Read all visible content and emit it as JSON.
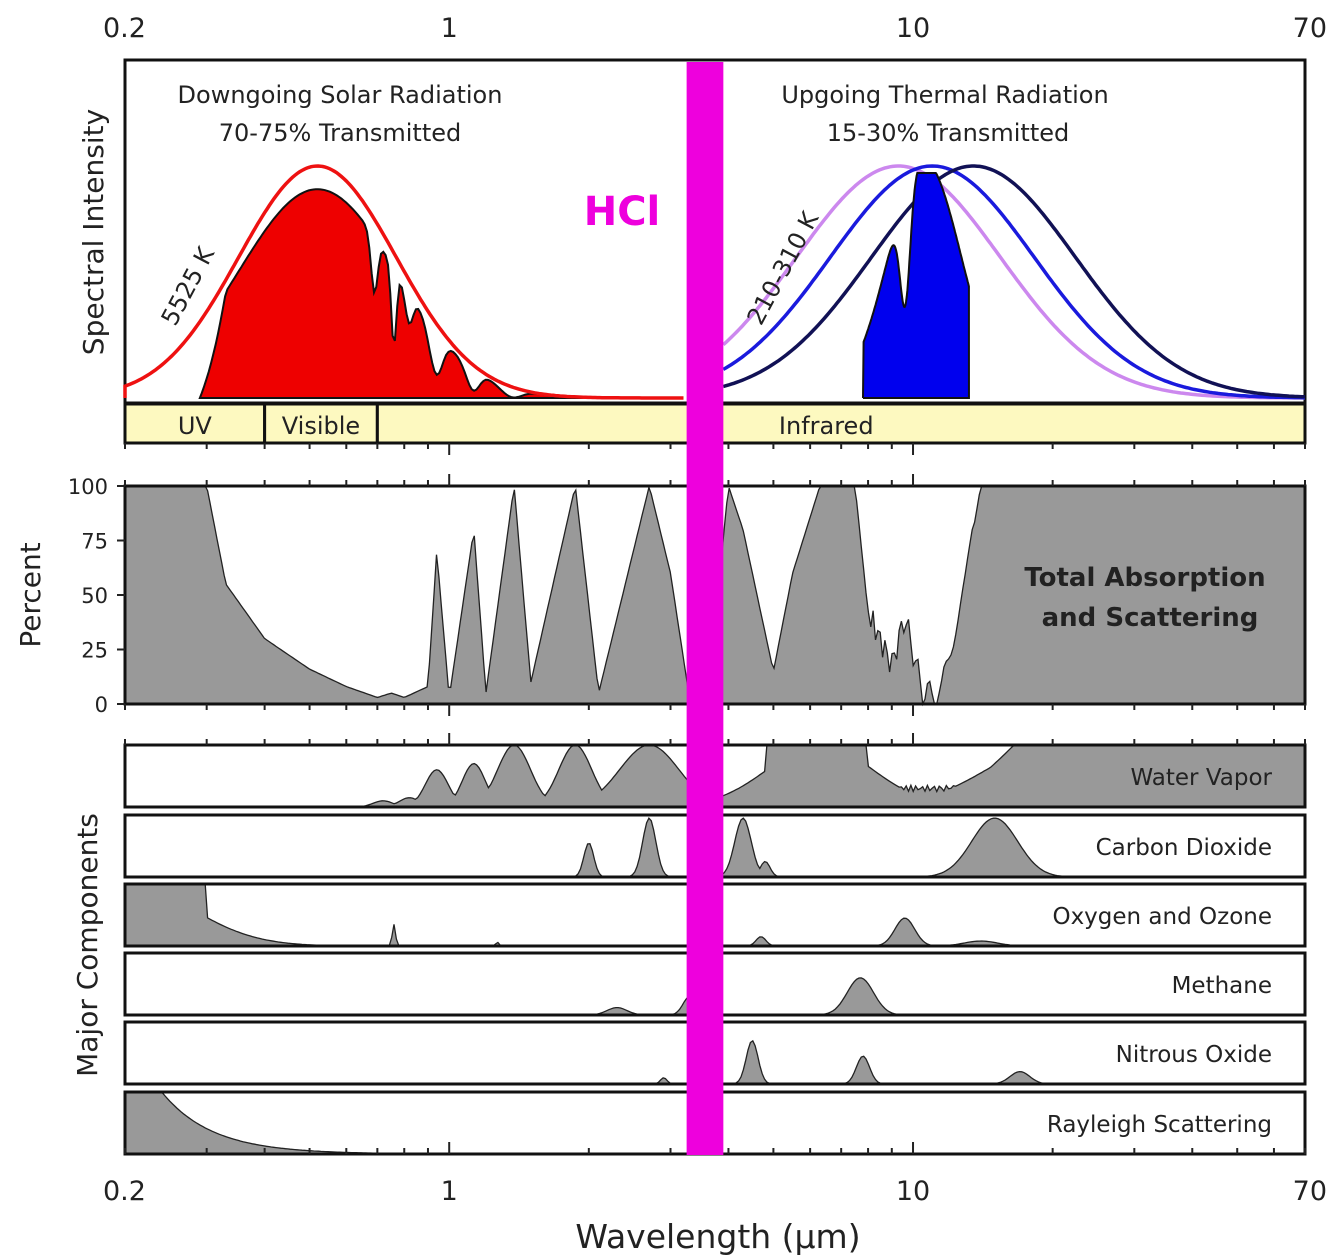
{
  "chart_data": {
    "type": "area",
    "xlabel": "Wavelength (μm)",
    "x_scale": "log",
    "xlim": [
      0.2,
      70
    ],
    "x_ticks": [
      "0.2",
      "1",
      "10",
      "70"
    ],
    "highlight": {
      "label": "HCl",
      "color": "#ee00dd",
      "x_range": [
        3.25,
        3.9
      ]
    },
    "panels": {
      "spectrum": {
        "ylabel": "Spectral Intensity",
        "solar": {
          "title": "Downgoing Solar Radiation",
          "subtitle": "70-75% Transmitted",
          "curve_label": "5525 K",
          "blackbody_color": "#ee1111",
          "fill_color": "#ee0000"
        },
        "thermal": {
          "title": "Upgoing Thermal Radiation",
          "subtitle": "15-30% Transmitted",
          "curve_label": "210-310 K",
          "blackbody_colors": [
            "#cc88ee",
            "#1a1add",
            "#111155"
          ],
          "fill_color": "#0000ee"
        },
        "bands": [
          {
            "label": "UV",
            "x_range": [
              0.2,
              0.4
            ]
          },
          {
            "label": "Visible",
            "x_range": [
              0.4,
              0.7
            ]
          },
          {
            "label": "Infrared",
            "x_range": [
              0.7,
              70
            ]
          }
        ]
      },
      "total": {
        "ylabel": "Percent",
        "title_line1": "Total Absorption",
        "title_line2": "and Scattering",
        "ylim": [
          0,
          100
        ],
        "y_ticks": [
          "0",
          "25",
          "50",
          "75",
          "100"
        ],
        "x": [
          0.2,
          0.3,
          0.33,
          0.4,
          0.5,
          0.6,
          0.7,
          0.75,
          0.8,
          0.9,
          0.94,
          1.0,
          1.13,
          1.2,
          1.38,
          1.5,
          1.87,
          2.1,
          2.7,
          3.0,
          3.3,
          3.6,
          4.0,
          4.3,
          5.0,
          5.5,
          6.3,
          7.5,
          8.0,
          9.0,
          9.6,
          10.5,
          11.5,
          13.0,
          14.0,
          20.0,
          70.0
        ],
        "values": [
          100,
          100,
          55,
          30,
          16,
          8,
          3,
          5,
          3,
          8,
          70,
          3,
          80,
          5,
          100,
          10,
          100,
          5,
          100,
          60,
          2,
          1,
          100,
          80,
          15,
          60,
          100,
          100,
          42,
          18,
          40,
          5,
          5,
          60,
          100,
          100,
          100
        ]
      },
      "components_ylabel": "Major Components",
      "components": [
        {
          "name": "Water Vapor",
          "peaks": [
            [
              0.72,
              0.1,
              0.03
            ],
            [
              0.82,
              0.15,
              0.03
            ],
            [
              0.94,
              0.6,
              0.035
            ],
            [
              1.13,
              0.7,
              0.035
            ],
            [
              1.38,
              1.0,
              0.05
            ],
            [
              1.87,
              1.0,
              0.05
            ],
            [
              2.7,
              1.0,
              0.09
            ],
            [
              6.3,
              1.0,
              0.16
            ],
            [
              8.5,
              0.3,
              0.15
            ],
            [
              20,
              1.0,
              0.2
            ],
            [
              40,
              1.0,
              0.4
            ]
          ]
        },
        {
          "name": "Carbon Dioxide",
          "peaks": [
            [
              2.0,
              0.55,
              0.015
            ],
            [
              2.7,
              0.95,
              0.02
            ],
            [
              4.3,
              0.95,
              0.025
            ],
            [
              4.8,
              0.25,
              0.015
            ],
            [
              15,
              0.95,
              0.07
            ]
          ]
        },
        {
          "name": "Oxygen and Ozone",
          "peaks": [
            [
              0.2,
              1.0,
              0.2
            ],
            [
              0.76,
              0.35,
              0.005
            ],
            [
              1.27,
              0.06,
              0.005
            ],
            [
              4.7,
              0.15,
              0.015
            ],
            [
              9.6,
              0.45,
              0.03
            ],
            [
              14,
              0.08,
              0.05
            ]
          ]
        },
        {
          "name": "Methane",
          "peaks": [
            [
              2.3,
              0.12,
              0.03
            ],
            [
              3.3,
              0.3,
              0.02
            ],
            [
              7.7,
              0.6,
              0.04
            ]
          ]
        },
        {
          "name": "Nitrous Oxide",
          "peaks": [
            [
              2.9,
              0.1,
              0.01
            ],
            [
              4.5,
              0.7,
              0.018
            ],
            [
              7.8,
              0.45,
              0.02
            ],
            [
              17,
              0.2,
              0.03
            ]
          ]
        },
        {
          "name": "Rayleigh Scattering",
          "peaks": [
            [
              0.2,
              1.0,
              0.0
            ]
          ]
        }
      ]
    }
  }
}
